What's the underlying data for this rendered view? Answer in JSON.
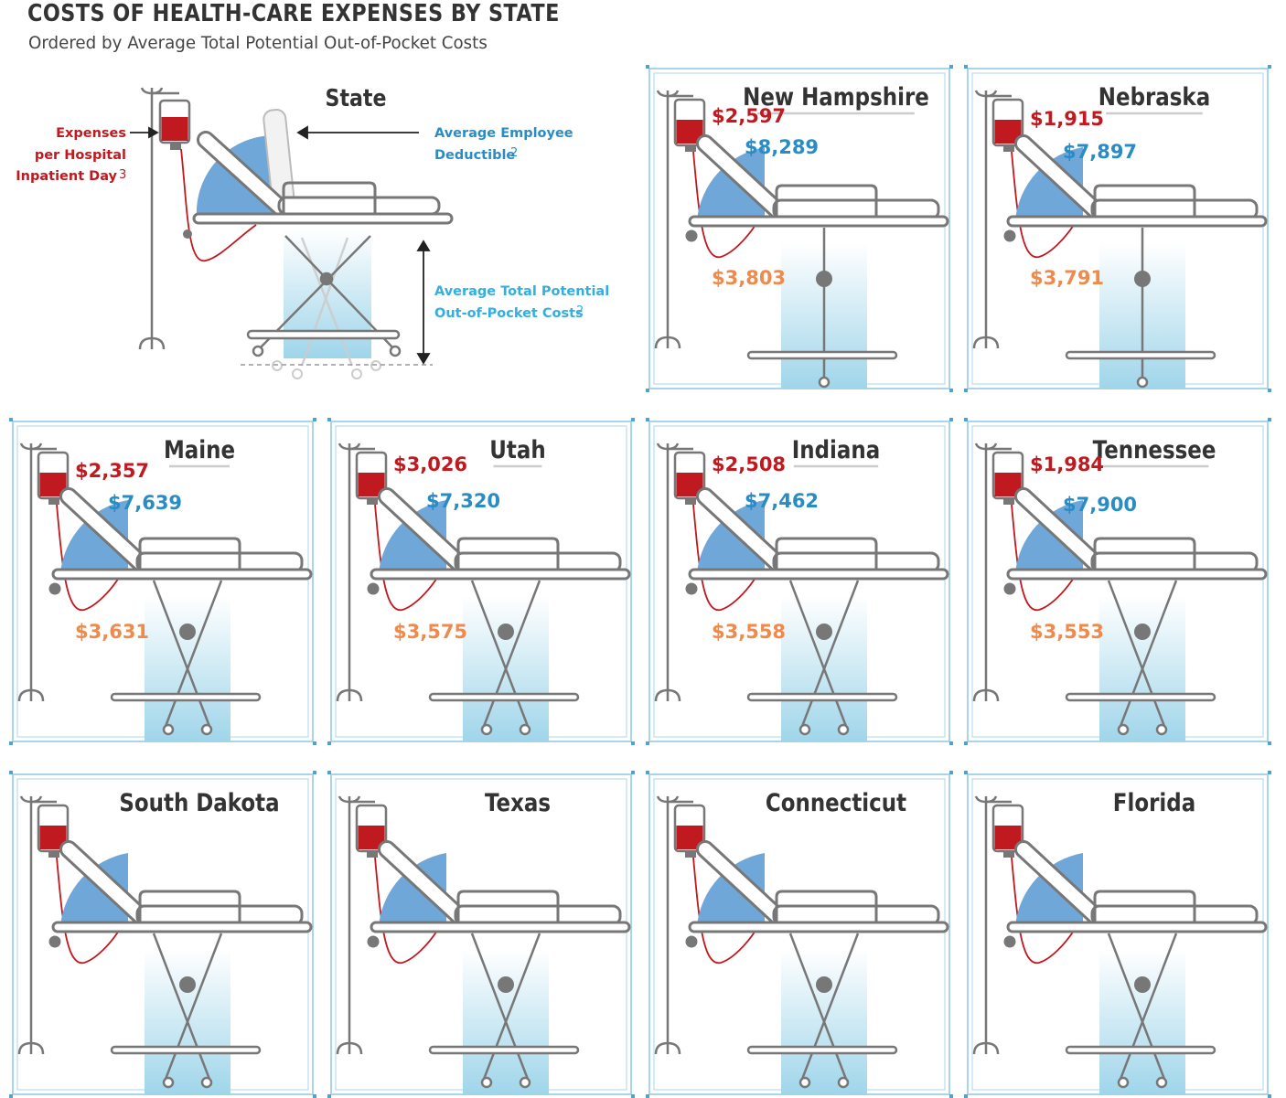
{
  "header": {
    "title": "COSTS OF HEALTH-CARE EXPENSES BY STATE",
    "subtitle": "Ordered by Average Total Potential Out-of-Pocket Costs"
  },
  "legend": {
    "state_label": "State",
    "inpatient_label_lines": [
      "Expenses",
      "per Hospital",
      "Inpatient Day"
    ],
    "inpatient_footnote": "3",
    "deductible_label_lines": [
      "Average Employee",
      "Deductible"
    ],
    "deductible_footnote": "2",
    "oop_label_lines": [
      "Average Total Potential",
      "Out-of-Pocket Costs"
    ],
    "oop_footnote": "2"
  },
  "colors": {
    "inpatient": "#c0191f",
    "deductible": "#2a8cc4",
    "oop": "#ef8a4c",
    "frame": "#a9d4ea",
    "frame_dot": "#4ea3d3",
    "wheel_gradient_top": "#ffffff",
    "wheel_gradient_bottom": "#9fd5ea",
    "wedge": "#6fa8d8",
    "outline": "#777777"
  },
  "chart_data": {
    "type": "table",
    "title": "COSTS OF HEALTH-CARE EXPENSES BY STATE",
    "subtitle": "Ordered by Average Total Potential Out-of-Pocket Costs",
    "columns": [
      "State",
      "Expenses per Hospital Inpatient Day",
      "Average Employee Deductible",
      "Average Total Potential Out-of-Pocket Costs"
    ],
    "states": [
      {
        "state": "New Hampshire",
        "inpatient": 2597,
        "inpatient_label": "$2,597",
        "deductible": 8289,
        "deductible_label": "$8,289",
        "oop": 3803,
        "oop_label": "$3,803"
      },
      {
        "state": "Nebraska",
        "inpatient": 1915,
        "inpatient_label": "$1,915",
        "deductible": 7897,
        "deductible_label": "$7,897",
        "oop": 3791,
        "oop_label": "$3,791"
      },
      {
        "state": "Maine",
        "inpatient": 2357,
        "inpatient_label": "$2,357",
        "deductible": 7639,
        "deductible_label": "$7,639",
        "oop": 3631,
        "oop_label": "$3,631"
      },
      {
        "state": "Utah",
        "inpatient": 3026,
        "inpatient_label": "$3,026",
        "deductible": 7320,
        "deductible_label": "$7,320",
        "oop": 3575,
        "oop_label": "$3,575"
      },
      {
        "state": "Indiana",
        "inpatient": 2508,
        "inpatient_label": "$2,508",
        "deductible": 7462,
        "deductible_label": "$7,462",
        "oop": 3558,
        "oop_label": "$3,558"
      },
      {
        "state": "Tennessee",
        "inpatient": 1984,
        "inpatient_label": "$1,984",
        "deductible": 7900,
        "deductible_label": "$7,900",
        "oop": 3553,
        "oop_label": "$3,553"
      },
      {
        "state": "South Dakota"
      },
      {
        "state": "Texas"
      },
      {
        "state": "Connecticut"
      },
      {
        "state": "Florida"
      }
    ]
  }
}
